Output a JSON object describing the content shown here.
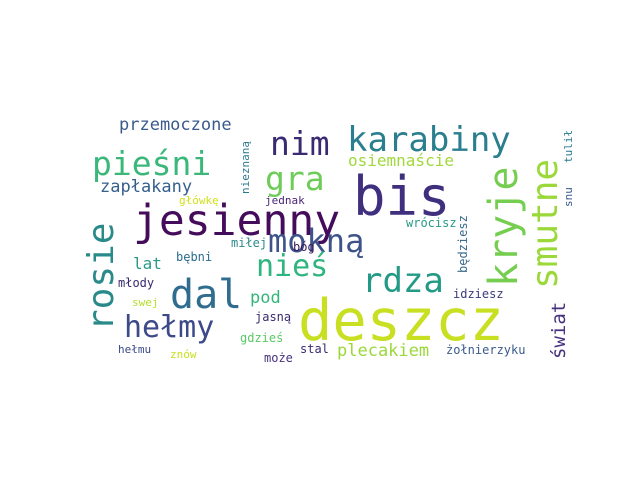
{
  "word_cloud": {
    "words": [
      {
        "text": "deszcz",
        "color": "#c8df22"
      },
      {
        "text": "bis",
        "color": "#3f2f7e"
      },
      {
        "text": "jesienny",
        "color": "#440c5a"
      },
      {
        "text": "kryje",
        "color": "#75ce50"
      },
      {
        "text": "karabiny",
        "color": "#2a7e8e"
      },
      {
        "text": "smutne",
        "color": "#9bd83a"
      },
      {
        "text": "rosie",
        "color": "#2a8a8a"
      },
      {
        "text": "pieśni",
        "color": "#3ab87a"
      },
      {
        "text": "dal",
        "color": "#2f6c8e"
      },
      {
        "text": "mokną",
        "color": "#3e538a"
      },
      {
        "text": "nim",
        "color": "#3a2a72"
      },
      {
        "text": "rdza",
        "color": "#239a86"
      },
      {
        "text": "gra",
        "color": "#6fcc5a"
      },
      {
        "text": "nieś",
        "color": "#2fb580"
      },
      {
        "text": "hełmy",
        "color": "#3d4a8a"
      },
      {
        "text": "przemoczone",
        "color": "#3a5a8c"
      },
      {
        "text": "zapłakany",
        "color": "#35608d"
      },
      {
        "text": "osiemnaście",
        "color": "#a0d83a"
      },
      {
        "text": "plecakiem",
        "color": "#9bd83a"
      },
      {
        "text": "świat",
        "color": "#46327e"
      },
      {
        "text": "pod",
        "color": "#34b679"
      },
      {
        "text": "lat",
        "color": "#2a9a88"
      },
      {
        "text": "nieznaną",
        "color": "#2a7a8e"
      },
      {
        "text": "jednak",
        "color": "#482576"
      },
      {
        "text": "główkę",
        "color": "#d0e11c"
      },
      {
        "text": "wrócisz",
        "color": "#2a9a88"
      },
      {
        "text": "będziesz",
        "color": "#3a6a8c"
      },
      {
        "text": "tulił",
        "color": "#29798e"
      },
      {
        "text": "snu",
        "color": "#3a5a8c"
      },
      {
        "text": "miłej",
        "color": "#2f8a8a"
      },
      {
        "text": "bóg",
        "color": "#3a1a5a"
      },
      {
        "text": "bębni",
        "color": "#2a6c8e"
      },
      {
        "text": "idziesz",
        "color": "#3a3a7e"
      },
      {
        "text": "młody",
        "color": "#3a2a6e"
      },
      {
        "text": "swej",
        "color": "#b6de2b"
      },
      {
        "text": "jasną",
        "color": "#3a2a6e"
      },
      {
        "text": "gdzieś",
        "color": "#5ac864"
      },
      {
        "text": "hełmu",
        "color": "#3a4a8a"
      },
      {
        "text": "znów",
        "color": "#c8e020"
      },
      {
        "text": "może",
        "color": "#46327e"
      },
      {
        "text": "stal",
        "color": "#3a2a6e"
      },
      {
        "text": "żołnierzyku",
        "color": "#3a5a8c"
      }
    ]
  }
}
